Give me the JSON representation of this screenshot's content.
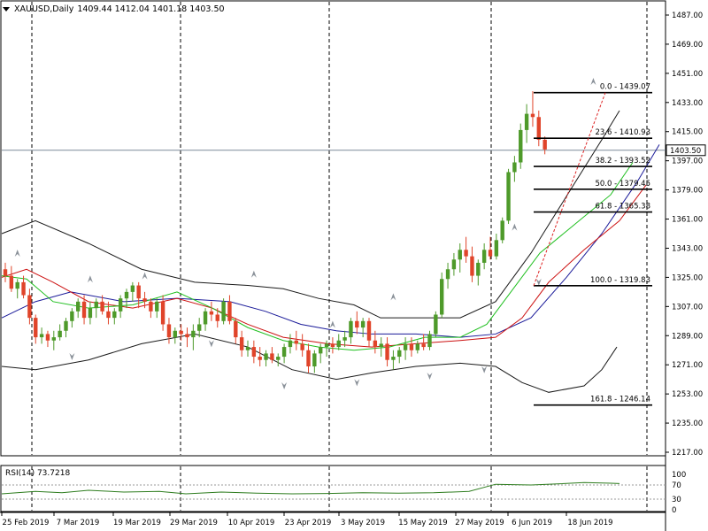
{
  "header": {
    "symbol": "XAUUSD,Daily",
    "ohlc": "1409.44 1412.04 1401.18 1403.50"
  },
  "price_axis": {
    "labels": [
      "1487.00",
      "1469.00",
      "1451.00",
      "1433.00",
      "1415.00",
      "1397.00",
      "1379.00",
      "1361.00",
      "1343.00",
      "1325.00",
      "1307.00",
      "1289.00",
      "1271.00",
      "1253.00",
      "1235.00",
      "1217.00"
    ],
    "current_price": "1403.50"
  },
  "fibonacci": [
    {
      "label": "0.0 - 1439.07"
    },
    {
      "label": "23.6 - 1410.93"
    },
    {
      "label": "38.2 - 1393.52"
    },
    {
      "label": "50.0 - 1379.45"
    },
    {
      "label": "61.8 - 1365.38"
    },
    {
      "label": "100.0 - 1319.83"
    },
    {
      "label": "161.8 - 1246.14"
    }
  ],
  "rsi": {
    "label": "RSI(14) 73.7218",
    "axis_labels": [
      "100",
      "70",
      "30",
      "0"
    ]
  },
  "date_axis": {
    "labels": [
      "25 Feb 2019",
      "7 Mar 2019",
      "19 Mar 2019",
      "29 Mar 2019",
      "10 Apr 2019",
      "23 Apr 2019",
      "3 May 2019",
      "15 May 2019",
      "27 May 2019",
      "6 Jun 2019",
      "18 Jun 2019"
    ]
  },
  "colors": {
    "bull": "#4e9a2a",
    "bear": "#e0442a",
    "bollinger": "#1a1a1a",
    "ma_fast": "#1fbf1f",
    "ma_mid": "#cc1111",
    "ma_slow": "#1a1a99",
    "rsi_line": "#2e7d1f",
    "fractal": "#8a9199"
  }
}
